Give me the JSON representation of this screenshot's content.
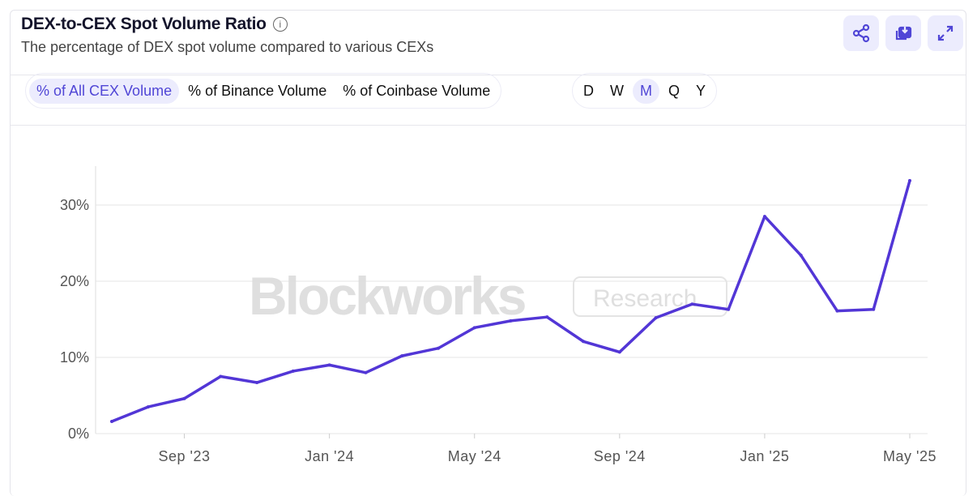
{
  "header": {
    "title": "DEX-to-CEX Spot Volume Ratio",
    "subtitle": "The percentage of DEX spot volume compared to various CEXs",
    "info_icon": "info-icon"
  },
  "actions": [
    {
      "name": "share-icon"
    },
    {
      "name": "download-icon"
    },
    {
      "name": "expand-icon"
    }
  ],
  "metric_tabs": [
    {
      "label": "% of All CEX Volume",
      "selected": true
    },
    {
      "label": "% of Binance Volume",
      "selected": false
    },
    {
      "label": "% of Coinbase Volume",
      "selected": false
    }
  ],
  "period_tabs": [
    {
      "label": "D",
      "selected": false
    },
    {
      "label": "W",
      "selected": false
    },
    {
      "label": "M",
      "selected": true
    },
    {
      "label": "Q",
      "selected": false
    },
    {
      "label": "Y",
      "selected": false
    }
  ],
  "watermark": "Blockworks Research",
  "colors": {
    "line": "#5236d6",
    "accent": "#5046d6",
    "tab_bg": "#ececfd"
  },
  "chart_data": {
    "type": "line",
    "x": [
      "Jul '23",
      "Aug '23",
      "Sep '23",
      "Oct '23",
      "Nov '23",
      "Dec '23",
      "Jan '24",
      "Feb '24",
      "Mar '24",
      "Apr '24",
      "May '24",
      "Jun '24",
      "Jul '24",
      "Aug '24",
      "Sep '24",
      "Oct '24",
      "Nov '24",
      "Dec '24",
      "Jan '25",
      "Feb '25",
      "Mar '25",
      "Apr '25",
      "May '25"
    ],
    "series": [
      {
        "values": [
          1.6,
          3.5,
          4.6,
          7.5,
          6.7,
          8.2,
          9.0,
          8.0,
          10.2,
          11.2,
          13.9,
          14.8,
          15.3,
          12.1,
          10.7,
          15.2,
          17.0,
          16.3,
          28.5,
          23.4,
          16.1,
          16.3,
          33.2
        ]
      }
    ],
    "xticks": [
      "Sep '23",
      "Jan '24",
      "May '24",
      "Sep '24",
      "Jan '25",
      "May '25"
    ],
    "xtick_index": [
      2,
      6,
      10,
      14,
      18,
      22
    ],
    "yticks": [
      0,
      10,
      20,
      30
    ],
    "ytick_labels": [
      "0%",
      "10%",
      "20%",
      "30%"
    ],
    "ylim": [
      0,
      35
    ],
    "grid": "horizontal"
  }
}
